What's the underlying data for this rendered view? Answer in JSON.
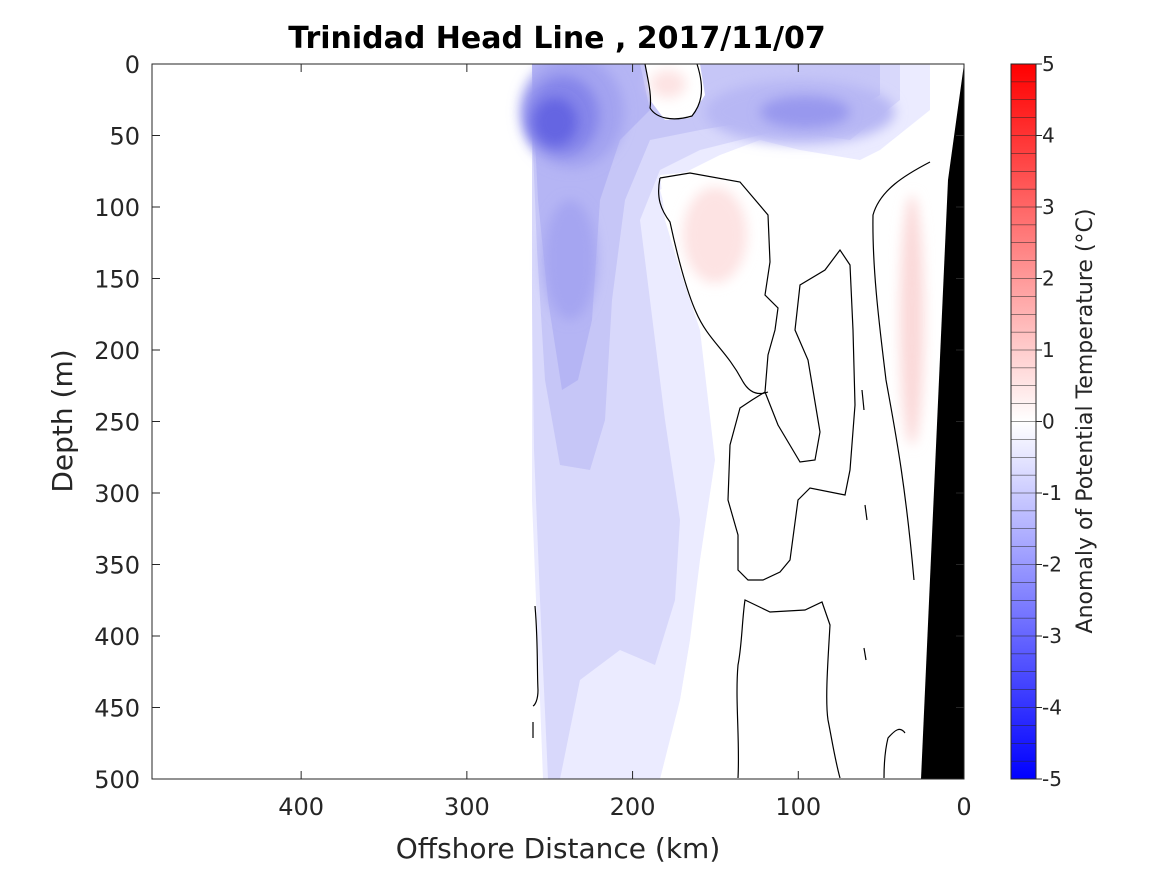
{
  "chart_data": {
    "type": "heatmap",
    "title": "Trinidad Head Line , 2017/11/07",
    "xlabel": "Offshore Distance (km)",
    "ylabel": "Depth (m)",
    "xlim": [
      490,
      0
    ],
    "ylim": [
      0,
      500
    ],
    "x_reversed": true,
    "y_reversed": true,
    "x_ticks": [
      400,
      300,
      200,
      100,
      0
    ],
    "y_ticks": [
      0,
      50,
      100,
      150,
      200,
      250,
      300,
      350,
      400,
      450,
      500
    ],
    "colorbar": {
      "label": "Anomaly of Potential Temperature (°C)",
      "range": [
        -5,
        5
      ],
      "ticks": [
        5,
        4,
        3,
        2,
        1,
        0,
        -1,
        -2,
        -3,
        -4,
        -5
      ],
      "step": 0.25,
      "colormap": "blue-white-red",
      "low_color": "#0000ff",
      "high_color": "#ff0000"
    },
    "grid": false,
    "data_extent_km": [
      0,
      260
    ],
    "bathymetry_color": "#000000",
    "features": [
      {
        "name": "cold core",
        "x_km": 245,
        "depth_m": 40,
        "anomaly_c": -2.5
      },
      {
        "name": "subsurface cold anomaly",
        "x_km": 105,
        "depth_m": 35,
        "anomaly_c": -1.5
      },
      {
        "name": "surface warm patch",
        "x_km": 175,
        "depth_m": 20,
        "anomaly_c": 0.4
      },
      {
        "name": "warm lens",
        "x_km": 160,
        "depth_m": 130,
        "anomaly_c": 0.3
      },
      {
        "name": "nearshore warm band",
        "x_km": 35,
        "depth_m": 200,
        "anomaly_c": 0.4
      }
    ]
  }
}
